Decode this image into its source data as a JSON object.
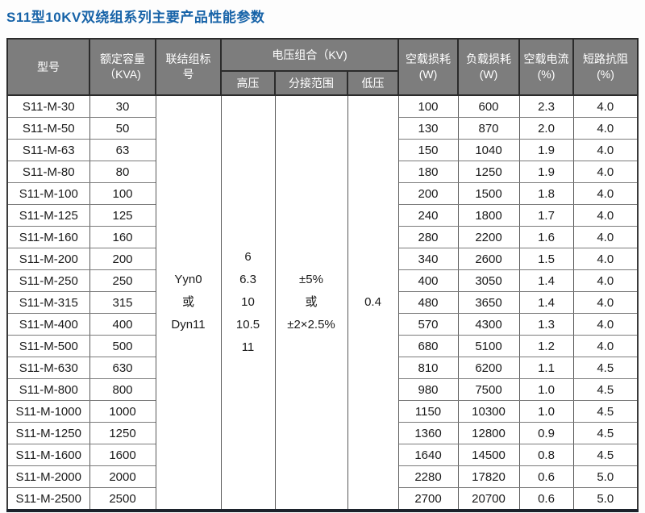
{
  "title": "S11型10KV双绕组系列主要产品性能参数",
  "colors": {
    "title": "#1763a8",
    "header_bg": "#7d7d7d",
    "header_text": "#ffffff",
    "grid": "#7b7b7b",
    "outer_border": "#3a3a3a",
    "bottom_bar": "#1c222b"
  },
  "table": {
    "headers": {
      "model": "型号",
      "capacity": "额定容量\n（KVA)",
      "connection": "联结组标\n号",
      "voltage_group": "电压组合（KV)",
      "hv": "高压",
      "tap_range": "分接范围",
      "lv": "低压",
      "no_load_loss": "空载损耗\n(W)",
      "load_loss": "负载损耗\n(W)",
      "no_load_current": "空载电流\n(%)",
      "impedance": "短路抗阻\n(%)"
    },
    "merged": {
      "connection": "Yyn0\n或\nDyn11",
      "hv": "6\n6.3\n10\n10.5\n11",
      "tap": "±5%\n或\n±2×2.5%",
      "lv": "0.4"
    },
    "rows": [
      [
        "S11-M-30",
        "30",
        "100",
        "600",
        "2.3",
        "4.0"
      ],
      [
        "S11-M-50",
        "50",
        "130",
        "870",
        "2.0",
        "4.0"
      ],
      [
        "S11-M-63",
        "63",
        "150",
        "1040",
        "1.9",
        "4.0"
      ],
      [
        "S11-M-80",
        "80",
        "180",
        "1250",
        "1.9",
        "4.0"
      ],
      [
        "S11-M-100",
        "100",
        "200",
        "1500",
        "1.8",
        "4.0"
      ],
      [
        "S11-M-125",
        "125",
        "240",
        "1800",
        "1.7",
        "4.0"
      ],
      [
        "S11-M-160",
        "160",
        "280",
        "2200",
        "1.6",
        "4.0"
      ],
      [
        "S11-M-200",
        "200",
        "340",
        "2600",
        "1.5",
        "4.0"
      ],
      [
        "S11-M-250",
        "250",
        "400",
        "3050",
        "1.4",
        "4.0"
      ],
      [
        "S11-M-315",
        "315",
        "480",
        "3650",
        "1.4",
        "4.0"
      ],
      [
        "S11-M-400",
        "400",
        "570",
        "4300",
        "1.3",
        "4.0"
      ],
      [
        "S11-M-500",
        "500",
        "680",
        "5100",
        "1.2",
        "4.0"
      ],
      [
        "S11-M-630",
        "630",
        "810",
        "6200",
        "1.1",
        "4.5"
      ],
      [
        "S11-M-800",
        "800",
        "980",
        "7500",
        "1.0",
        "4.5"
      ],
      [
        "S11-M-1000",
        "1000",
        "1150",
        "10300",
        "1.0",
        "4.5"
      ],
      [
        "S11-M-1250",
        "1250",
        "1360",
        "12800",
        "0.9",
        "4.5"
      ],
      [
        "S11-M-1600",
        "1600",
        "1640",
        "14500",
        "0.8",
        "4.5"
      ],
      [
        "S11-M-2000",
        "2000",
        "2280",
        "17820",
        "0.6",
        "5.0"
      ],
      [
        "S11-M-2500",
        "2500",
        "2700",
        "20700",
        "0.6",
        "5.0"
      ]
    ]
  }
}
